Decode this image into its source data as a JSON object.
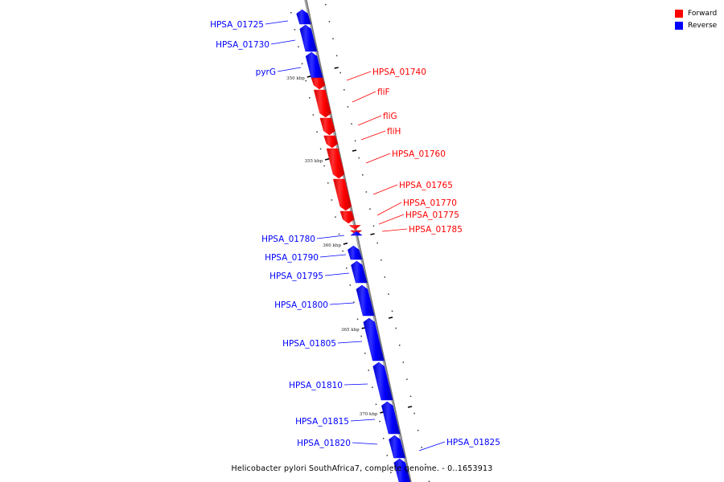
{
  "legend": {
    "forward_label": "Forward",
    "reverse_label": "Reverse",
    "forward_color": "#ff0000",
    "reverse_color": "#0000ff"
  },
  "caption": "Helicobacter pylori SouthAfrica7, complete genome. - 0..1653913",
  "scale_ticks": [
    "350 kbp",
    "355 kbp",
    "360 kbp",
    "365 kbp",
    "370 kbp"
  ],
  "genes": [
    {
      "name": "HPSA_01725",
      "strand": "reverse"
    },
    {
      "name": "HPSA_01730",
      "strand": "reverse"
    },
    {
      "name": "pyrG",
      "strand": "reverse"
    },
    {
      "name": "HPSA_01740",
      "strand": "forward"
    },
    {
      "name": "fliF",
      "strand": "forward"
    },
    {
      "name": "fliG",
      "strand": "forward"
    },
    {
      "name": "fliH",
      "strand": "forward"
    },
    {
      "name": "HPSA_01760",
      "strand": "forward"
    },
    {
      "name": "HPSA_01765",
      "strand": "forward"
    },
    {
      "name": "HPSA_01770",
      "strand": "forward"
    },
    {
      "name": "HPSA_01775",
      "strand": "forward"
    },
    {
      "name": "HPSA_01785",
      "strand": "forward"
    },
    {
      "name": "HPSA_01780",
      "strand": "reverse"
    },
    {
      "name": "HPSA_01790",
      "strand": "reverse"
    },
    {
      "name": "HPSA_01795",
      "strand": "reverse"
    },
    {
      "name": "HPSA_01800",
      "strand": "reverse"
    },
    {
      "name": "HPSA_01805",
      "strand": "reverse"
    },
    {
      "name": "HPSA_01810",
      "strand": "reverse"
    },
    {
      "name": "HPSA_01815",
      "strand": "reverse"
    },
    {
      "name": "HPSA_01820",
      "strand": "reverse"
    },
    {
      "name": "HPSA_01825",
      "strand": "reverse"
    }
  ]
}
